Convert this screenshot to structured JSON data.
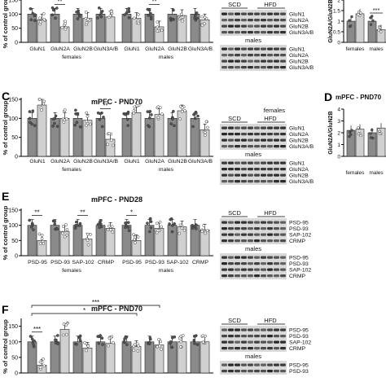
{
  "colors": {
    "gray": "#8a8a8a",
    "light": "#d0d0d0",
    "white": "#ffffff",
    "blot_bg": "#d9d9d9",
    "band": "#3e3e3e"
  },
  "panels": [
    {
      "id": "B",
      "letter": "",
      "title": "",
      "ylabel": "% of control group",
      "cats": [
        "GluN1",
        "GluN2A",
        "GluN2B",
        "GluN3A/B",
        "GluN1",
        "GluN2A",
        "GluN2B",
        "GluN3A/B"
      ],
      "sex_labels": [
        "females",
        "males"
      ],
      "values": [
        [
          100,
          80
        ],
        [
          100,
          55
        ],
        [
          100,
          85
        ],
        [
          100,
          90
        ],
        [
          100,
          85
        ],
        [
          100,
          55
        ],
        [
          100,
          95
        ],
        [
          100,
          80
        ]
      ],
      "stars": [
        {
          "pair": 1,
          "text": "**"
        },
        {
          "pair": 5,
          "text": "**"
        }
      ],
      "blot": {
        "header": "",
        "groups": [
          "SCD",
          "HFD"
        ],
        "sex": "males",
        "rows1": [
          "GluN1",
          "GluN2A",
          "GluN2B",
          "GluN3A/B"
        ],
        "rows2": [
          "GluN1",
          "GluN2A",
          "GluN2B",
          "GluN3A/B"
        ]
      },
      "ratio": {
        "letter": "",
        "title": "",
        "ylabel": "GluN2A/GluN2B",
        "cats": [
          "females",
          "males"
        ],
        "values": [
          [
            1.0,
            1.35
          ],
          [
            1.0,
            0.6
          ]
        ],
        "stars": [
          {
            "pair": 1,
            "text": "***"
          }
        ]
      }
    },
    {
      "id": "C",
      "letter": "C",
      "title": "mPFC - PND70",
      "ylabel": "% of control group",
      "cats": [
        "GluN1",
        "GluN2A",
        "GluN2B",
        "GluN3A/B",
        "GluN1",
        "GluN2A",
        "GluN2B",
        "GluN3A/B"
      ],
      "sex_labels": [
        "females",
        "males"
      ],
      "values": [
        [
          100,
          135
        ],
        [
          100,
          100
        ],
        [
          100,
          95
        ],
        [
          100,
          45
        ],
        [
          100,
          115
        ],
        [
          100,
          110
        ],
        [
          100,
          120
        ],
        [
          100,
          70
        ]
      ],
      "stars": [
        {
          "pair": 3,
          "text": "**"
        }
      ],
      "blot": {
        "header": "females",
        "groups": [
          "SCD",
          "HFD"
        ],
        "sex": "males",
        "rows1": [
          "GluN1",
          "GluN2A",
          "GluN2B",
          "GluN3A/B"
        ],
        "rows2": [
          "GluN1",
          "GluN2A",
          "GluN2B",
          "GluN3A/B"
        ]
      },
      "ratio": {
        "letter": "D",
        "title": "mPFC - PND70",
        "ylabel": "GluN2A/GluN2B",
        "cats": [
          "females",
          "males"
        ],
        "values": [
          [
            2.2,
            2.3
          ],
          [
            2.0,
            2.4
          ]
        ],
        "stars": []
      }
    },
    {
      "id": "E",
      "letter": "E",
      "title": "mPFC - PND28",
      "ylabel": "% of control group",
      "cats": [
        "PSD-95",
        "PSD-93",
        "SAP-102",
        "CRMP",
        "PSD-95",
        "PSD-93",
        "SAP-102",
        "CRMP"
      ],
      "sex_labels": [
        "females",
        "males"
      ],
      "values": [
        [
          100,
          50
        ],
        [
          100,
          80
        ],
        [
          100,
          55
        ],
        [
          100,
          90
        ],
        [
          100,
          50
        ],
        [
          100,
          90
        ],
        [
          100,
          95
        ],
        [
          100,
          85
        ]
      ],
      "stars": [
        {
          "pair": 0,
          "text": "**"
        },
        {
          "pair": 2,
          "text": "**"
        },
        {
          "pair": 4,
          "text": "*"
        }
      ],
      "blot": {
        "header": "",
        "groups": [
          "SCD",
          "HFD"
        ],
        "sex": "males",
        "rows1": [
          "PSD-95",
          "PSD-93",
          "SAP-102",
          "CRMP"
        ],
        "rows2": [
          "PSD-95",
          "PSD-93",
          "SAP-102",
          "CRMP"
        ]
      },
      "ratio": null
    },
    {
      "id": "F",
      "letter": "F",
      "title": "mPFC - PND70",
      "ylabel": "% of control group",
      "cats": [
        "",
        "",
        "",
        "",
        "",
        "",
        "",
        ""
      ],
      "sex_labels": [
        "",
        ""
      ],
      "values": [
        [
          100,
          25
        ],
        [
          100,
          140
        ],
        [
          100,
          80
        ],
        [
          100,
          95
        ],
        [
          100,
          85
        ],
        [
          100,
          90
        ],
        [
          100,
          100
        ],
        [
          100,
          100
        ]
      ],
      "stars": [
        {
          "pair": 0,
          "text": "***"
        }
      ],
      "brackets": [
        {
          "from": 0,
          "to": 4,
          "text": "*"
        },
        {
          "from": 0,
          "to": 5,
          "text": "***"
        }
      ],
      "blot": {
        "header": "",
        "groups": [
          "SCD",
          "HFD"
        ],
        "sex": "males",
        "rows1": [
          "PSD-95",
          "PSD-93",
          "SAP-102",
          "CRMP"
        ],
        "rows2": [
          "PSD-95",
          "PSD-93"
        ]
      },
      "ratio": null
    }
  ]
}
